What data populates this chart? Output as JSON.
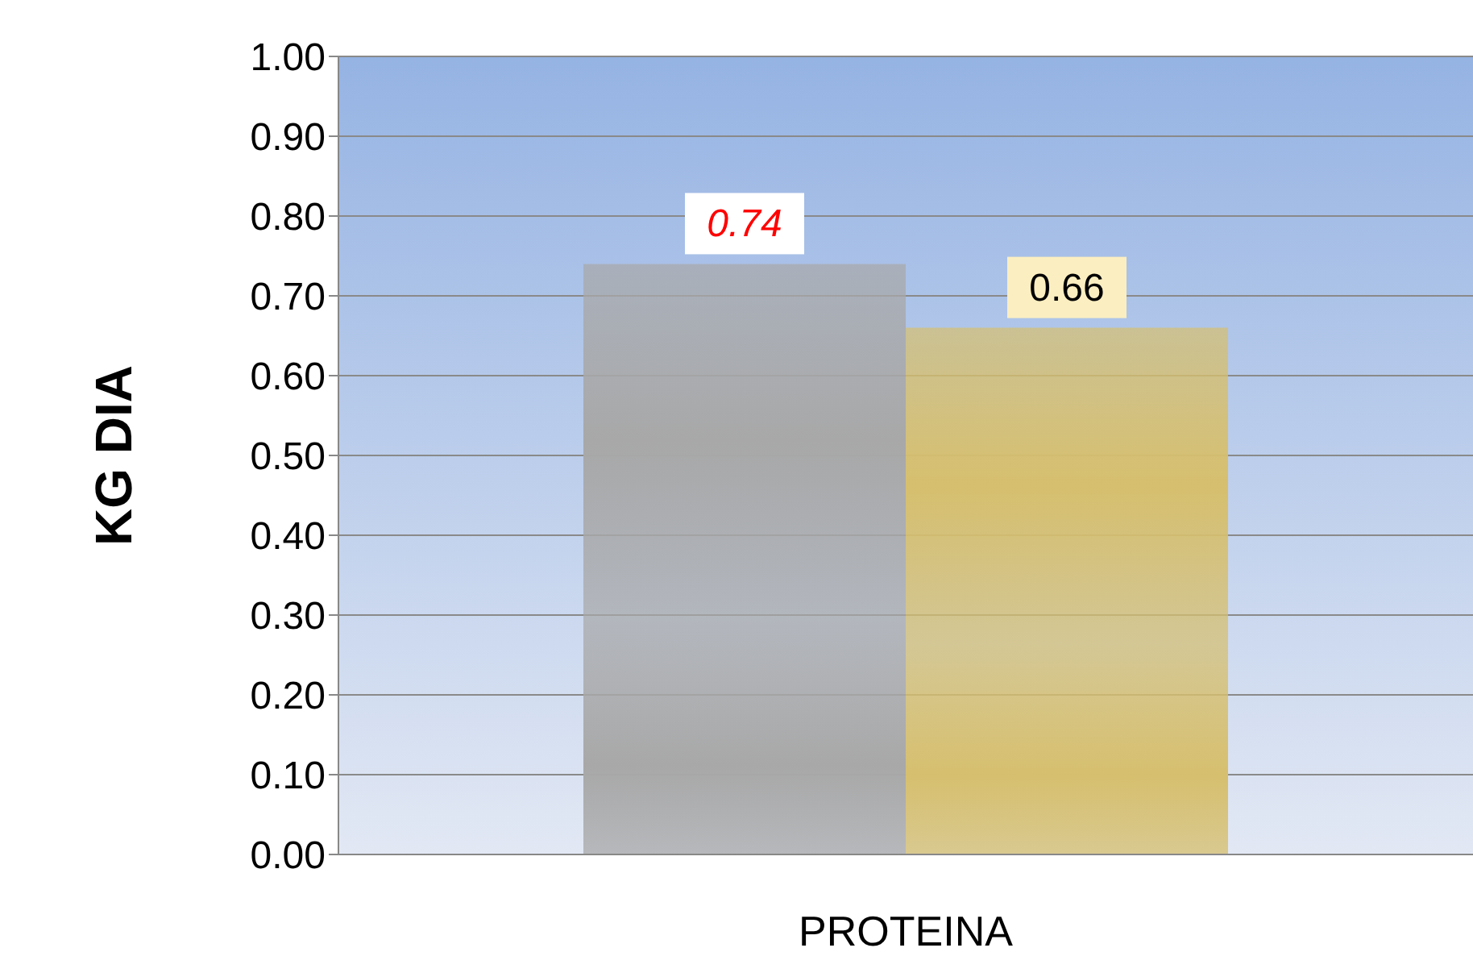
{
  "chart_data": {
    "type": "bar",
    "ylabel": "KG  DIA",
    "categories": [
      "PROTEINA"
    ],
    "series": [
      {
        "color": "#a8a8a8",
        "values": [
          0.74
        ]
      },
      {
        "color": "#d6bf6e",
        "values": [
          0.66
        ]
      }
    ],
    "ylim": [
      0,
      1
    ],
    "yticks": [
      {
        "value": 0,
        "label": "0.00"
      },
      {
        "value": 0.1,
        "label": "0.10"
      },
      {
        "value": 0.2,
        "label": "0.20"
      },
      {
        "value": 0.3,
        "label": "0.30"
      },
      {
        "value": 0.4,
        "label": "0.40"
      },
      {
        "value": 0.5,
        "label": "0.50"
      },
      {
        "value": 0.6,
        "label": "0.60"
      },
      {
        "value": 0.7,
        "label": "0.70"
      },
      {
        "value": 0.8,
        "label": "0.80"
      },
      {
        "value": 0.9,
        "label": "0.90"
      },
      {
        "value": 1,
        "label": "1.00"
      }
    ],
    "grid": "y",
    "legend": false,
    "data_labels": true
  }
}
